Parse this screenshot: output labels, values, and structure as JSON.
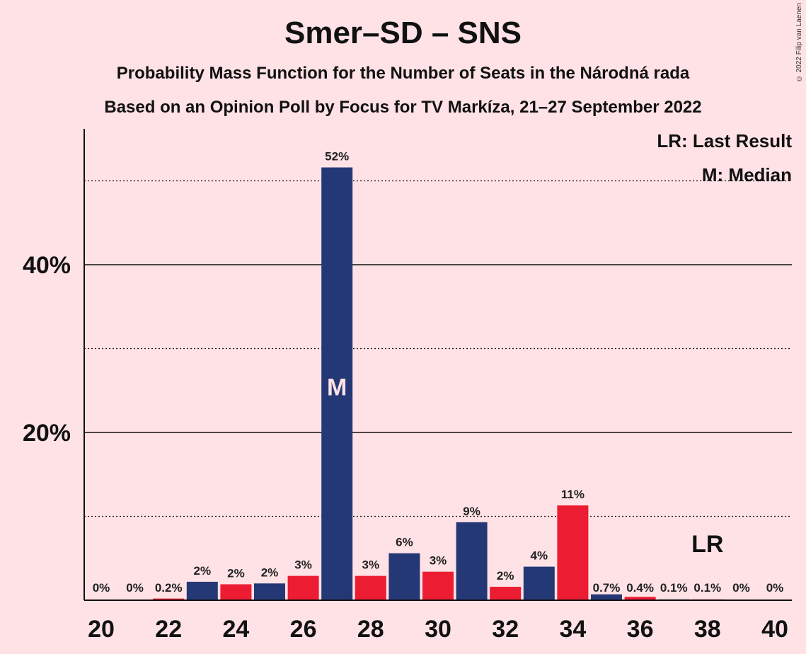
{
  "chart_data": {
    "type": "bar",
    "title": "Smer–SD – SNS",
    "subtitle": "Probability Mass Function for the Number of Seats in the Národná rada",
    "subtitle2": "Based on an Opinion Poll by Focus for TV Markíza, 21–27 September 2022",
    "copyright": "© 2022 Filip van Laenen",
    "legend": {
      "last_result": "LR: Last Result",
      "median": "M: Median",
      "placement": "top-right"
    },
    "x": [
      20,
      21,
      22,
      23,
      24,
      25,
      26,
      27,
      28,
      29,
      30,
      31,
      32,
      33,
      34,
      35,
      36,
      37,
      38,
      39,
      40
    ],
    "values": [
      0,
      0,
      0.2,
      2.2,
      1.9,
      2.0,
      2.9,
      51.6,
      2.9,
      5.6,
      3.4,
      9.3,
      1.6,
      4.0,
      11.3,
      0.7,
      0.4,
      0.1,
      0.1,
      0,
      0
    ],
    "labels": [
      "0%",
      "0%",
      "0.2%",
      "2%",
      "2%",
      "2%",
      "3%",
      "52%",
      "3%",
      "6%",
      "3%",
      "9%",
      "2%",
      "4%",
      "11%",
      "0.7%",
      "0.4%",
      "0.1%",
      "0.1%",
      "0%",
      "0%"
    ],
    "x_tick_labels": [
      "20",
      "22",
      "24",
      "26",
      "28",
      "30",
      "32",
      "34",
      "36",
      "38",
      "40"
    ],
    "y_tick_labels": [
      {
        "value": 20,
        "label": "20%"
      },
      {
        "value": 40,
        "label": "40%"
      }
    ],
    "solid_grid": [
      20,
      40
    ],
    "dotted_grid": [
      10,
      30,
      50
    ],
    "ylim": [
      0,
      56
    ],
    "median_seat": 27,
    "median_marker": "M",
    "last_result_seat": 38,
    "last_result_marker": "LR",
    "colors": {
      "odd": "#253876",
      "even": "#ec1c33",
      "background": "#ffe2e5",
      "median_text": "#ffe2e5"
    }
  }
}
